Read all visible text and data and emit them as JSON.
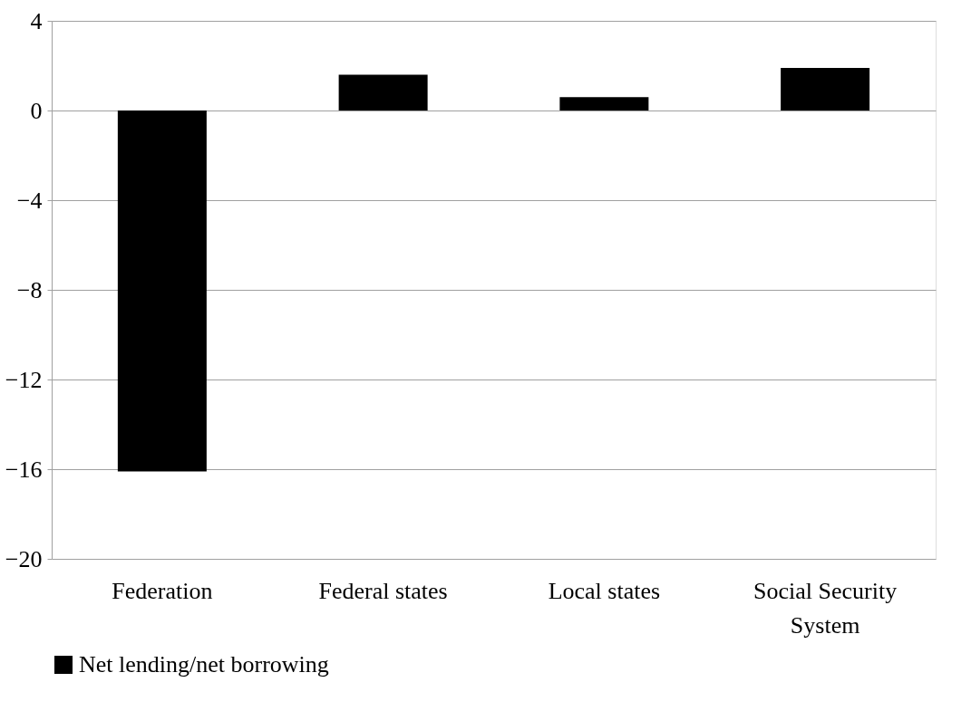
{
  "chart_data": {
    "type": "bar",
    "categories": [
      "Federation",
      "Federal states",
      "Local states",
      "Social Security System"
    ],
    "series": [
      {
        "name": "Net lending/net borrowing",
        "color": "#000000",
        "values": [
          -16.1,
          1.6,
          0.6,
          1.9
        ]
      }
    ],
    "ylim": [
      -20,
      4
    ],
    "yticks": [
      -20,
      -16,
      -12,
      -8,
      -4,
      0,
      4
    ],
    "grid": "y",
    "legend": "bottom"
  }
}
